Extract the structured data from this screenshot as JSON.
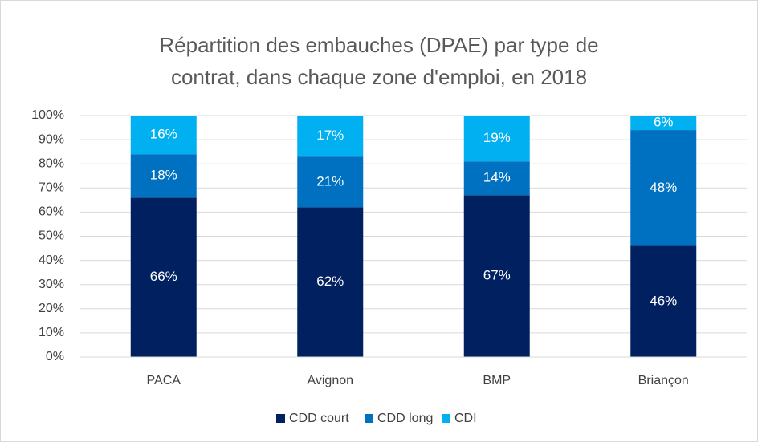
{
  "chart_data": {
    "type": "stacked_bar",
    "title": [
      "Répartition des embauches (DPAE) par type de",
      "contrat, dans chaque zone d'emploi, en 2018"
    ],
    "categories": [
      "PACA",
      "Avignon",
      "BMP",
      "Briançon"
    ],
    "series": [
      {
        "name": "CDD court",
        "color": "#002060",
        "values": [
          66,
          62,
          67,
          46
        ],
        "value_labels": [
          "66%",
          "62%",
          "67%",
          "46%"
        ]
      },
      {
        "name": "CDD long",
        "color": "#0070c0",
        "values": [
          18,
          21,
          14,
          48
        ],
        "value_labels": [
          "18%",
          "21%",
          "14%",
          "48%"
        ]
      },
      {
        "name": "CDI",
        "color": "#00b0f0",
        "values": [
          16,
          17,
          19,
          6
        ],
        "value_labels": [
          "16%",
          "17%",
          "19%",
          "6%"
        ]
      }
    ],
    "ylim": [
      0,
      100
    ],
    "yticks": [
      {
        "value": 0,
        "label": "0%"
      },
      {
        "value": 10,
        "label": "10%"
      },
      {
        "value": 20,
        "label": "20%"
      },
      {
        "value": 30,
        "label": "30%"
      },
      {
        "value": 40,
        "label": "40%"
      },
      {
        "value": 50,
        "label": "50%"
      },
      {
        "value": 60,
        "label": "60%"
      },
      {
        "value": 70,
        "label": "70%"
      },
      {
        "value": 80,
        "label": "80%"
      },
      {
        "value": 90,
        "label": "90%"
      },
      {
        "value": 100,
        "label": "100%"
      }
    ],
    "grid": true,
    "legend": "bottom"
  }
}
